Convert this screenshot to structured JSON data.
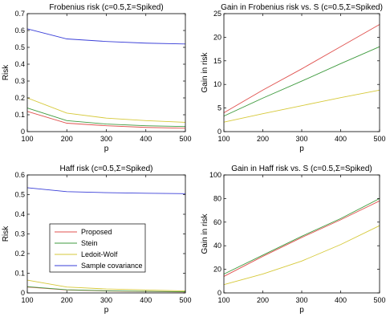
{
  "colors": {
    "proposed": "#e0524f",
    "stein": "#3f9b3f",
    "ledoit_wolf": "#d6c93a",
    "sample": "#3a3fd8",
    "axis": "#000000",
    "background": "#ffffff"
  },
  "legend": {
    "placement": "inside lower-left of Haff risk panel",
    "entries": [
      "Proposed",
      "Stein",
      "Ledoit-Wolf",
      "Sample covariance"
    ]
  },
  "chart_data": [
    {
      "type": "line",
      "title": "Frobenius risk (c=0.5,Σ=Spiked)",
      "xlabel": "p",
      "ylabel": "Risk",
      "xlim": [
        100,
        500
      ],
      "ylim": [
        0,
        0.7
      ],
      "xticks": [
        100,
        200,
        300,
        400,
        500
      ],
      "yticks": [
        0,
        0.1,
        0.2,
        0.3,
        0.4,
        0.5,
        0.6,
        0.7
      ],
      "ytick_labels": [
        "0",
        "0.1",
        "0.2",
        "0.3",
        "0.4",
        "0.5",
        "0.6",
        "0.7"
      ],
      "grid": false,
      "x": [
        100,
        200,
        300,
        400,
        500
      ],
      "series": [
        {
          "name": "Proposed",
          "color_key": "proposed",
          "values": [
            0.12,
            0.05,
            0.035,
            0.025,
            0.02
          ]
        },
        {
          "name": "Stein",
          "color_key": "stein",
          "values": [
            0.14,
            0.065,
            0.045,
            0.035,
            0.03
          ]
        },
        {
          "name": "Ledoit-Wolf",
          "color_key": "ledoit_wolf",
          "values": [
            0.2,
            0.11,
            0.08,
            0.065,
            0.055
          ]
        },
        {
          "name": "Sample covariance",
          "color_key": "sample",
          "values": [
            0.61,
            0.55,
            0.535,
            0.525,
            0.52
          ]
        }
      ]
    },
    {
      "type": "line",
      "title": "Gain in Frobenius risk vs. S (c=0.5,Σ=Spiked)",
      "xlabel": "p",
      "ylabel": "Gain in risk",
      "xlim": [
        100,
        500
      ],
      "ylim": [
        0,
        25
      ],
      "xticks": [
        100,
        200,
        300,
        400,
        500
      ],
      "yticks": [
        0,
        5,
        10,
        15,
        20,
        25
      ],
      "ytick_labels": [
        "0",
        "5",
        "10",
        "15",
        "20",
        "25"
      ],
      "grid": false,
      "x": [
        100,
        200,
        300,
        400,
        500
      ],
      "series": [
        {
          "name": "Proposed",
          "color_key": "proposed",
          "values": [
            4.0,
            8.8,
            13.3,
            18.0,
            22.7
          ]
        },
        {
          "name": "Stein",
          "color_key": "stein",
          "values": [
            3.3,
            7.1,
            10.7,
            14.4,
            18.0
          ]
        },
        {
          "name": "Ledoit-Wolf",
          "color_key": "ledoit_wolf",
          "values": [
            2.0,
            3.8,
            5.5,
            7.2,
            8.8
          ]
        }
      ]
    },
    {
      "type": "line",
      "title": "Haff risk (c=0.5,Σ=Spiked)",
      "xlabel": "p",
      "ylabel": "Risk",
      "xlim": [
        100,
        500
      ],
      "ylim": [
        0,
        0.6
      ],
      "xticks": [
        100,
        200,
        300,
        400,
        500
      ],
      "yticks": [
        0,
        0.1,
        0.2,
        0.3,
        0.4,
        0.5,
        0.6
      ],
      "ytick_labels": [
        "0",
        "0.1",
        "0.2",
        "0.3",
        "0.4",
        "0.5",
        "0.6"
      ],
      "grid": false,
      "x": [
        100,
        200,
        300,
        400,
        500
      ],
      "series": [
        {
          "name": "Proposed",
          "color_key": "proposed",
          "values": [
            0.03,
            0.015,
            0.01,
            0.007,
            0.005
          ]
        },
        {
          "name": "Stein",
          "color_key": "stein",
          "values": [
            0.032,
            0.016,
            0.011,
            0.008,
            0.006
          ]
        },
        {
          "name": "Ledoit-Wolf",
          "color_key": "ledoit_wolf",
          "values": [
            0.065,
            0.03,
            0.02,
            0.015,
            0.01
          ]
        },
        {
          "name": "Sample covariance",
          "color_key": "sample",
          "values": [
            0.535,
            0.515,
            0.51,
            0.507,
            0.505
          ]
        }
      ]
    },
    {
      "type": "line",
      "title": "Gain in Haff risk vs. S (c=0.5,Σ=Spiked)",
      "xlabel": "p",
      "ylabel": "Gain in risk",
      "xlim": [
        100,
        500
      ],
      "ylim": [
        0,
        100
      ],
      "xticks": [
        100,
        200,
        300,
        400,
        500
      ],
      "yticks": [
        0,
        20,
        40,
        60,
        80,
        100
      ],
      "ytick_labels": [
        "0",
        "20",
        "40",
        "60",
        "80",
        "100"
      ],
      "grid": false,
      "x": [
        100,
        200,
        300,
        400,
        500
      ],
      "series": [
        {
          "name": "Proposed",
          "color_key": "proposed",
          "values": [
            14.0,
            31.0,
            47.0,
            62.0,
            78.0
          ]
        },
        {
          "name": "Stein",
          "color_key": "stein",
          "values": [
            16.0,
            32.0,
            48.0,
            63.0,
            80.0
          ]
        },
        {
          "name": "Ledoit-Wolf",
          "color_key": "ledoit_wolf",
          "values": [
            7.0,
            16.0,
            27.0,
            41.0,
            57.0
          ]
        }
      ]
    }
  ]
}
